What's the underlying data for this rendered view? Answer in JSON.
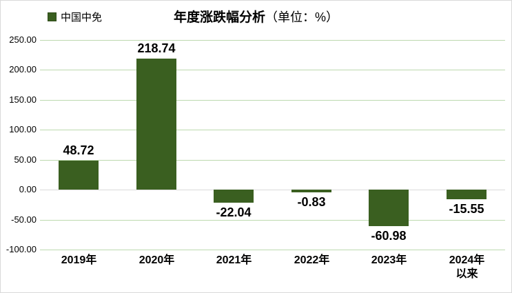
{
  "header": {
    "legend": {
      "label": "中国中免"
    },
    "title": {
      "main": "年度涨跌幅分析",
      "unit": "（单位：%）"
    }
  },
  "chart_data": {
    "type": "bar",
    "title": "年度涨跌幅分析",
    "title_unit": "（单位：%）",
    "unit": "%",
    "legend_position": "top-left",
    "legend_entries": [
      "中国中免"
    ],
    "grid": true,
    "categories": [
      "2019年",
      "2020年",
      "2021年",
      "2022年",
      "2023年",
      "2024年以来"
    ],
    "x_tick_lines": [
      [
        "2019年"
      ],
      [
        "2020年"
      ],
      [
        "2021年"
      ],
      [
        "2022年"
      ],
      [
        "2023年"
      ],
      [
        "2024年",
        "以来"
      ]
    ],
    "series": [
      {
        "name": "中国中免",
        "values": [
          48.72,
          218.74,
          -22.04,
          -0.83,
          -60.98,
          -15.55
        ],
        "labels": [
          "48.72",
          "218.74",
          "-22.04",
          "-0.83",
          "-60.98",
          "-15.55"
        ]
      }
    ],
    "ylim": [
      -100,
      250
    ],
    "yticks": [
      250,
      200,
      150,
      100,
      50,
      0,
      -50,
      -100
    ],
    "ytick_labels": [
      "250.00",
      "200.00",
      "150.00",
      "100.00",
      "50.00",
      "0.00",
      "-50.00",
      "-100.00"
    ],
    "bar_color": "#3a5f20",
    "gridline_color": "#bcd9ae",
    "zero_line_color": "#d9d9d9",
    "text_color": "#000000"
  }
}
